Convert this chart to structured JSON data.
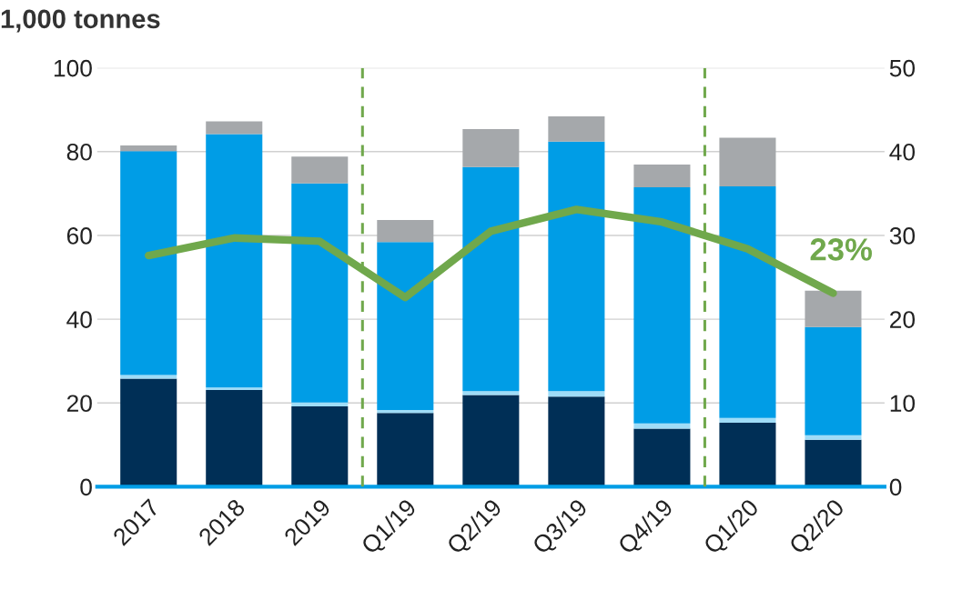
{
  "chart_data": {
    "type": "bar",
    "stacked": true,
    "title": "1,000 tonnes",
    "categories": [
      "2017",
      "2018",
      "2019",
      "Q1/19",
      "Q2/19",
      "Q3/19",
      "Q4/19",
      "Q1/20",
      "Q2/20"
    ],
    "series": [
      {
        "color": "#002f56",
        "values": [
          25.8,
          23.1,
          19.2,
          17.6,
          21.9,
          21.5,
          13.9,
          15.3,
          11.2
        ]
      },
      {
        "color": "#9fdcf7",
        "values": [
          0.9,
          0.6,
          0.9,
          0.7,
          0.9,
          1.3,
          1.2,
          1.1,
          1.1
        ]
      },
      {
        "color": "#009de6",
        "values": [
          53.4,
          60.5,
          52.3,
          40.1,
          53.5,
          59.6,
          56.4,
          55.3,
          25.8
        ]
      },
      {
        "color": "#a5a8ab",
        "values": [
          1.4,
          3.0,
          6.4,
          5.3,
          9.1,
          6.0,
          5.4,
          11.6,
          8.7
        ]
      },
      {
        "type": "line",
        "axis": "y2",
        "color": "#70a84c",
        "values": [
          27.6,
          29.7,
          29.3,
          22.6,
          30.5,
          33.1,
          31.6,
          28.4,
          23.1
        ]
      }
    ],
    "ylim": [
      0,
      100
    ],
    "yticks": [
      0,
      20,
      40,
      60,
      80,
      100
    ],
    "y2lim": [
      0,
      50
    ],
    "y2ticks": [
      0,
      10,
      20,
      30,
      40,
      50
    ],
    "annotations": [
      "23%"
    ],
    "grid": "y",
    "legend": false,
    "marker": "none"
  }
}
